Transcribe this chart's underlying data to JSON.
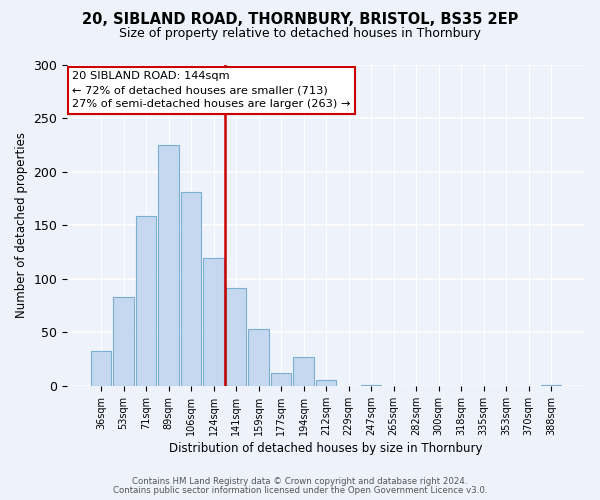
{
  "title": "20, SIBLAND ROAD, THORNBURY, BRISTOL, BS35 2EP",
  "subtitle": "Size of property relative to detached houses in Thornbury",
  "xlabel": "Distribution of detached houses by size in Thornbury",
  "ylabel": "Number of detached properties",
  "bin_labels": [
    "36sqm",
    "53sqm",
    "71sqm",
    "89sqm",
    "106sqm",
    "124sqm",
    "141sqm",
    "159sqm",
    "177sqm",
    "194sqm",
    "212sqm",
    "229sqm",
    "247sqm",
    "265sqm",
    "282sqm",
    "300sqm",
    "318sqm",
    "335sqm",
    "353sqm",
    "370sqm",
    "388sqm"
  ],
  "bar_values": [
    33,
    83,
    159,
    225,
    181,
    120,
    92,
    53,
    12,
    27,
    6,
    0,
    1,
    0,
    0,
    0,
    0,
    0,
    0,
    0,
    1
  ],
  "bar_color": "#c5d8f0",
  "bar_edge_color": "#7aafd4",
  "property_line_color": "#cc0000",
  "annotation_title": "20 SIBLAND ROAD: 144sqm",
  "annotation_line1": "← 72% of detached houses are smaller (713)",
  "annotation_line2": "27% of semi-detached houses are larger (263) →",
  "annotation_box_color": "white",
  "annotation_box_edge": "#cc0000",
  "ylim": [
    0,
    300
  ],
  "yticks": [
    0,
    50,
    100,
    150,
    200,
    250,
    300
  ],
  "footer_line1": "Contains HM Land Registry data © Crown copyright and database right 2024.",
  "footer_line2": "Contains public sector information licensed under the Open Government Licence v3.0.",
  "bg_color": "#eef2fb"
}
